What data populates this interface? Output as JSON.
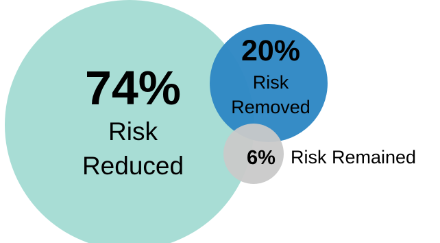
{
  "chart_data": {
    "type": "bubble",
    "bubbles": [
      {
        "value": "74%",
        "label_lines": [
          "Risk",
          "Reduced"
        ],
        "color": "#a8ddd5"
      },
      {
        "value": "20%",
        "label_lines": [
          "Risk",
          "Removed"
        ],
        "color": "#2e87c4"
      },
      {
        "value": "6%",
        "label_lines": [
          "Risk Remained"
        ],
        "color": "#c9c9c9"
      }
    ]
  }
}
